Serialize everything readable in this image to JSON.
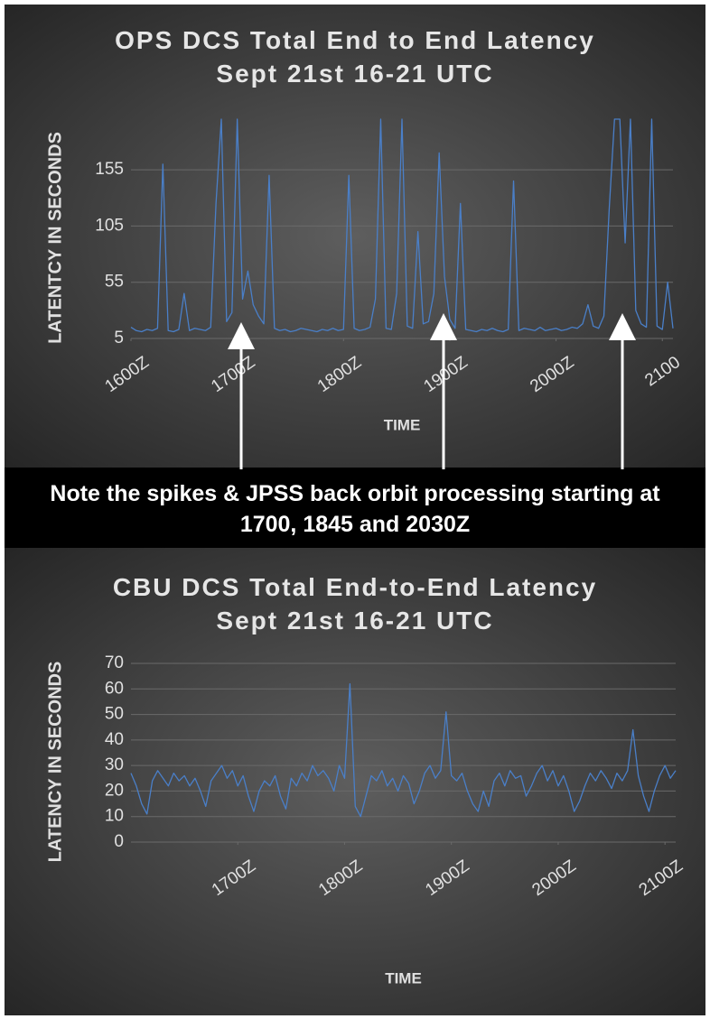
{
  "note": "Note the spikes & JPSS back orbit processing starting at 1700, 1845 and 2030Z",
  "chart_data": [
    {
      "type": "line",
      "title": "OPS DCS Total End to End Latency Sept 21st 16-21 UTC",
      "x_label": "TIME",
      "y_label": "LATENTCY  IN SECONDS",
      "color": "#4a7fc8",
      "grid": true,
      "xlim": [
        16,
        21.1
      ],
      "ylim": [
        5,
        200
      ],
      "xticks": [
        {
          "value": 16,
          "label": "1600Z"
        },
        {
          "value": 17,
          "label": "1700Z"
        },
        {
          "value": 18,
          "label": "1800Z"
        },
        {
          "value": 19,
          "label": "1900Z"
        },
        {
          "value": 20,
          "label": "2000Z"
        },
        {
          "value": 21,
          "label": "2100"
        }
      ],
      "yticks": [
        5,
        55,
        105,
        155
      ],
      "x": [
        16.0,
        16.05,
        16.1,
        16.15,
        16.2,
        16.25,
        16.3,
        16.35,
        16.4,
        16.45,
        16.5,
        16.55,
        16.6,
        16.65,
        16.7,
        16.75,
        16.8,
        16.85,
        16.9,
        16.95,
        17.0,
        17.05,
        17.1,
        17.15,
        17.2,
        17.25,
        17.3,
        17.35,
        17.4,
        17.45,
        17.5,
        17.55,
        17.6,
        17.65,
        17.7,
        17.75,
        17.8,
        17.85,
        17.9,
        17.95,
        18.0,
        18.05,
        18.1,
        18.15,
        18.2,
        18.25,
        18.3,
        18.35,
        18.4,
        18.45,
        18.5,
        18.55,
        18.6,
        18.65,
        18.7,
        18.75,
        18.8,
        18.85,
        18.9,
        18.95,
        19.0,
        19.05,
        19.1,
        19.15,
        19.2,
        19.25,
        19.3,
        19.35,
        19.4,
        19.45,
        19.5,
        19.55,
        19.6,
        19.65,
        19.7,
        19.75,
        19.8,
        19.85,
        19.9,
        19.95,
        20.0,
        20.05,
        20.1,
        20.15,
        20.2,
        20.25,
        20.3,
        20.35,
        20.4,
        20.45,
        20.5,
        20.55,
        20.6,
        20.65,
        20.7,
        20.75,
        20.8,
        20.85,
        20.9,
        20.95,
        21.0,
        21.05,
        21.1
      ],
      "values": [
        15,
        12,
        11,
        13,
        12,
        14,
        160,
        12,
        11,
        13,
        45,
        12,
        14,
        13,
        12,
        15,
        125,
        200,
        20,
        28,
        200,
        40,
        65,
        35,
        25,
        18,
        150,
        14,
        12,
        13,
        11,
        12,
        14,
        13,
        12,
        11,
        13,
        12,
        14,
        12,
        13,
        150,
        14,
        12,
        13,
        15,
        40,
        200,
        14,
        13,
        45,
        200,
        16,
        14,
        100,
        18,
        20,
        45,
        170,
        60,
        22,
        14,
        125,
        13,
        12,
        11,
        13,
        12,
        14,
        12,
        11,
        13,
        145,
        12,
        14,
        13,
        12,
        15,
        12,
        13,
        14,
        12,
        13,
        15,
        14,
        18,
        35,
        16,
        14,
        25,
        120,
        200,
        200,
        90,
        200,
        30,
        18,
        15,
        200,
        16,
        13,
        55,
        14
      ]
    },
    {
      "type": "line",
      "title": "CBU DCS Total End-to-End Latency Sept 21st 16-21 UTC",
      "x_label": "TIME",
      "y_label": "LATENCY IN SECONDS",
      "color": "#4a7fc8",
      "grid": true,
      "xlim": [
        16,
        21.1
      ],
      "ylim": [
        0,
        70
      ],
      "xticks": [
        {
          "value": 17,
          "label": "1700Z"
        },
        {
          "value": 18,
          "label": "1800Z"
        },
        {
          "value": 19,
          "label": "1900Z"
        },
        {
          "value": 20,
          "label": "2000Z"
        },
        {
          "value": 21,
          "label": "2100Z"
        }
      ],
      "yticks": [
        0,
        10,
        20,
        30,
        40,
        50,
        60,
        70
      ],
      "x": [
        16.0,
        16.05,
        16.1,
        16.15,
        16.2,
        16.25,
        16.3,
        16.35,
        16.4,
        16.45,
        16.5,
        16.55,
        16.6,
        16.65,
        16.7,
        16.75,
        16.8,
        16.85,
        16.9,
        16.95,
        17.0,
        17.05,
        17.1,
        17.15,
        17.2,
        17.25,
        17.3,
        17.35,
        17.4,
        17.45,
        17.5,
        17.55,
        17.6,
        17.65,
        17.7,
        17.75,
        17.8,
        17.85,
        17.9,
        17.95,
        18.0,
        18.05,
        18.1,
        18.15,
        18.2,
        18.25,
        18.3,
        18.35,
        18.4,
        18.45,
        18.5,
        18.55,
        18.6,
        18.65,
        18.7,
        18.75,
        18.8,
        18.85,
        18.9,
        18.95,
        19.0,
        19.05,
        19.1,
        19.15,
        19.2,
        19.25,
        19.3,
        19.35,
        19.4,
        19.45,
        19.5,
        19.55,
        19.6,
        19.65,
        19.7,
        19.75,
        19.8,
        19.85,
        19.9,
        19.95,
        20.0,
        20.05,
        20.1,
        20.15,
        20.2,
        20.25,
        20.3,
        20.35,
        20.4,
        20.45,
        20.5,
        20.55,
        20.6,
        20.65,
        20.7,
        20.75,
        20.8,
        20.85,
        20.9,
        20.95,
        21.0,
        21.05,
        21.1
      ],
      "values": [
        27,
        22,
        15,
        11,
        24,
        28,
        25,
        22,
        27,
        24,
        26,
        22,
        25,
        20,
        14,
        24,
        27,
        30,
        25,
        28,
        22,
        26,
        18,
        12,
        20,
        24,
        22,
        26,
        18,
        13,
        25,
        22,
        27,
        24,
        30,
        26,
        28,
        25,
        20,
        30,
        25,
        62,
        14,
        10,
        18,
        26,
        24,
        28,
        22,
        25,
        20,
        26,
        23,
        15,
        20,
        27,
        30,
        25,
        28,
        51,
        26,
        24,
        27,
        20,
        15,
        12,
        20,
        14,
        24,
        27,
        22,
        28,
        25,
        26,
        18,
        22,
        27,
        30,
        24,
        28,
        22,
        26,
        20,
        12,
        16,
        22,
        27,
        24,
        28,
        25,
        21,
        27,
        24,
        28,
        44,
        26,
        18,
        12,
        20,
        26,
        30,
        25,
        28
      ]
    }
  ]
}
